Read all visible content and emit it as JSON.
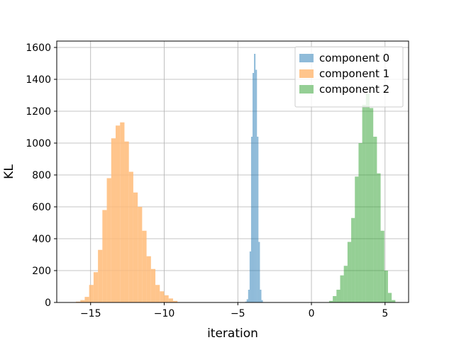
{
  "chart_data": {
    "type": "bar",
    "subtype": "histogram",
    "title": "",
    "xlabel": "iteration",
    "ylabel": "KL",
    "xlim": [
      -17.3,
      6.6
    ],
    "ylim": [
      0,
      1640
    ],
    "xticks": [
      -15,
      -10,
      -5,
      0,
      5
    ],
    "xtick_labels": [
      "−15",
      "−10",
      "−5",
      "0",
      "5"
    ],
    "yticks": [
      0,
      200,
      400,
      600,
      800,
      1000,
      1200,
      1400,
      1600
    ],
    "grid": true,
    "legend_position": "top-right",
    "series": [
      {
        "name": "component 1",
        "color": "#ffbb78",
        "opacity": 0.85,
        "bin_start": -16.0,
        "bin_width": 0.3,
        "values": [
          5,
          15,
          35,
          110,
          190,
          330,
          580,
          780,
          1030,
          1110,
          1130,
          1010,
          820,
          690,
          600,
          450,
          290,
          210,
          110,
          70,
          45,
          25,
          10
        ]
      },
      {
        "name": "component 0",
        "color": "#1f77b4",
        "opacity": 0.5,
        "bin_start": -4.5,
        "bin_width": 0.1,
        "values": [
          5,
          20,
          80,
          320,
          1040,
          1440,
          1560,
          1460,
          1040,
          380,
          80,
          15
        ]
      },
      {
        "name": "component 2",
        "color": "#2ca02c",
        "opacity": 0.5,
        "bin_start": 1.2,
        "bin_width": 0.25,
        "values": [
          10,
          40,
          80,
          170,
          230,
          380,
          530,
          790,
          1000,
          1240,
          1310,
          1220,
          1040,
          810,
          450,
          200,
          60,
          15
        ]
      }
    ],
    "legend": [
      {
        "label": "component 0",
        "color": "#1f77b4"
      },
      {
        "label": "component 1",
        "color": "#ffbb78"
      },
      {
        "label": "component 2",
        "color": "#2ca02c"
      }
    ]
  }
}
